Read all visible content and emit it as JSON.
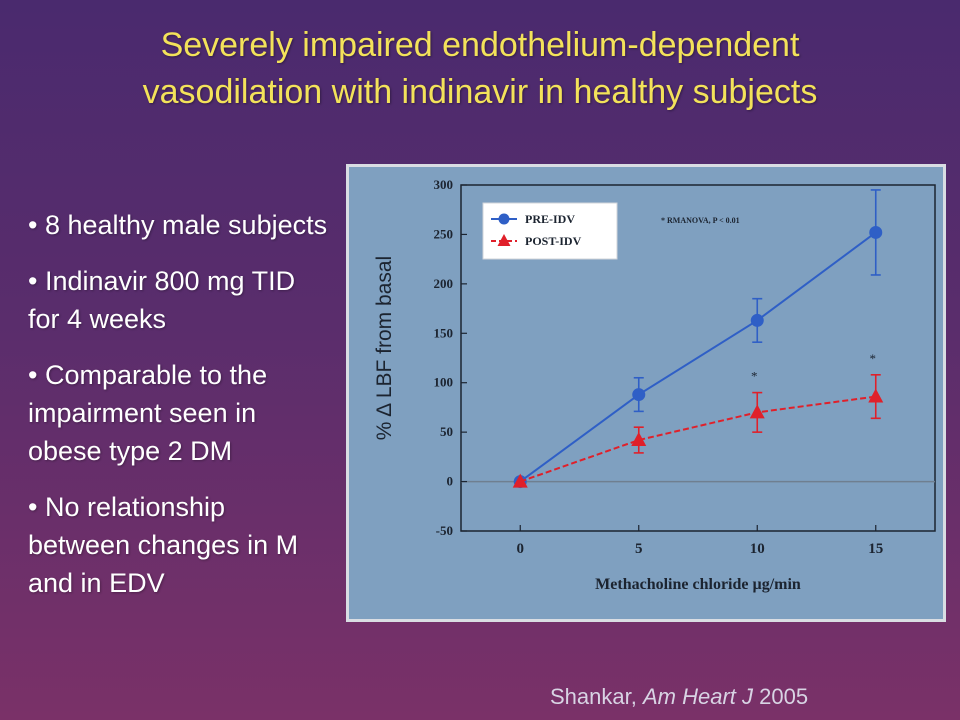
{
  "slide": {
    "title_line1": "Severely impaired endothelium-dependent",
    "title_line2": "vasodilation with indinavir in healthy subjects",
    "bullets": [
      "• 8 healthy male subjects",
      "• Indinavir 800 mg TID for 4 weeks",
      "• Comparable to the impairment seen in obese type 2 DM",
      "• No relationship between changes in M and in EDV"
    ],
    "citation_author": "Shankar,",
    "citation_journal": "Am Heart J",
    "citation_year": "2005"
  },
  "colors": {
    "title": "#f3e25a",
    "pre_series": "#2f5fc6",
    "post_series": "#e0202a",
    "plot_bg": "#7fa0c0"
  },
  "chart_data": {
    "type": "line",
    "xlabel": "Methacholine chloride µg/min",
    "ylabel": "% Δ LBF from basal",
    "x": [
      0,
      5,
      10,
      15
    ],
    "xticks": [
      0,
      5,
      10,
      15
    ],
    "xlim": [
      -2.5,
      17.5
    ],
    "ylim": [
      -50,
      300
    ],
    "yticks": [
      -50,
      0,
      50,
      100,
      150,
      200,
      250,
      300
    ],
    "annotation": "* RMANOVA, P < 0.01",
    "legend_position": "top-left",
    "series": [
      {
        "name": "PRE-IDV",
        "marker": "circle",
        "color": "#2f5fc6",
        "values": [
          0,
          88,
          163,
          252
        ],
        "errors": [
          0,
          17,
          22,
          43
        ],
        "significant": [
          false,
          false,
          false,
          false
        ]
      },
      {
        "name": "POST-IDV",
        "marker": "triangle",
        "color": "#e0202a",
        "values": [
          0,
          42,
          70,
          86
        ],
        "errors": [
          0,
          13,
          20,
          22
        ],
        "significant": [
          false,
          false,
          true,
          true
        ]
      }
    ]
  }
}
